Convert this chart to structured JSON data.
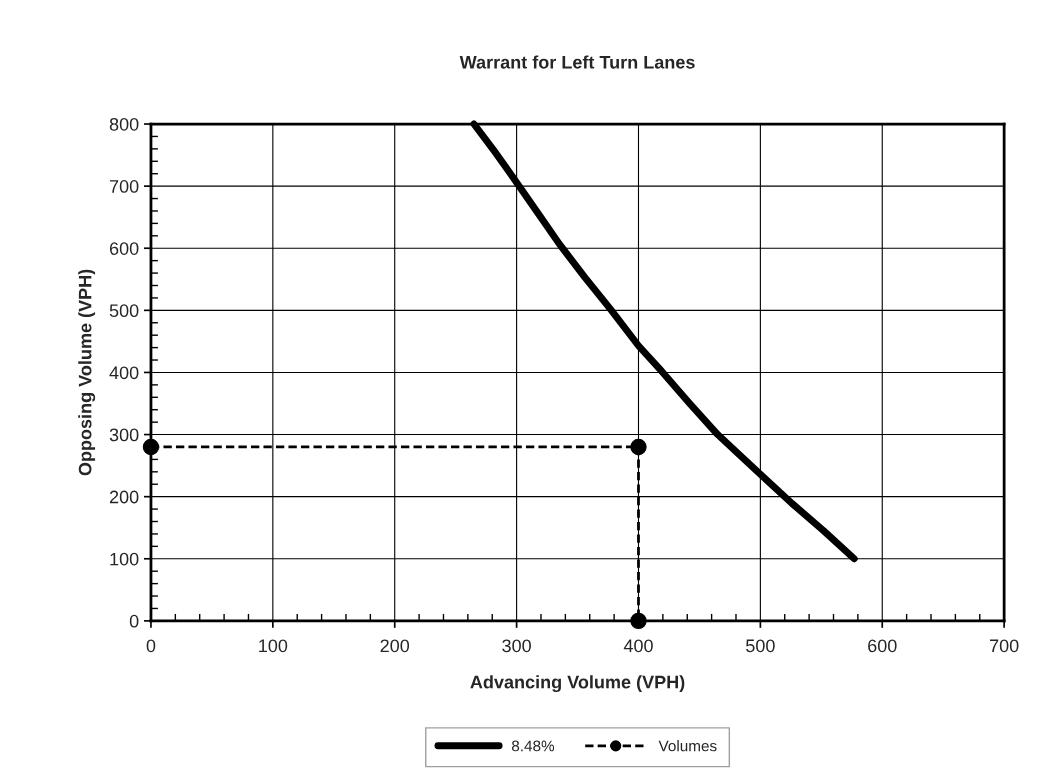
{
  "chart_data": {
    "type": "line",
    "title": "Warrant for Left Turn Lanes",
    "xlabel": "Advancing Volume (VPH)",
    "ylabel": "Opposing Volume (VPH)",
    "xlim": [
      0,
      700
    ],
    "ylim": [
      0,
      800
    ],
    "xticks": [
      0,
      100,
      200,
      300,
      400,
      500,
      600,
      700,
      {
        "value": 20,
        "label": null
      },
      {
        "value": 40,
        "label": null
      },
      {
        "value": 60,
        "label": null
      },
      {
        "value": 80,
        "label": null
      },
      {
        "value": 120,
        "label": null
      },
      {
        "value": 140,
        "label": null
      },
      {
        "value": 160,
        "label": null
      },
      {
        "value": 180,
        "label": null
      },
      {
        "value": 220,
        "label": null
      },
      {
        "value": 240,
        "label": null
      },
      {
        "value": 260,
        "label": null
      },
      {
        "value": 280,
        "label": null
      },
      {
        "value": 320,
        "label": null
      },
      {
        "value": 340,
        "label": null
      },
      {
        "value": 360,
        "label": null
      },
      {
        "value": 380,
        "label": null
      },
      {
        "value": 420,
        "label": null
      },
      {
        "value": 440,
        "label": null
      },
      {
        "value": 460,
        "label": null
      },
      {
        "value": 480,
        "label": null
      },
      {
        "value": 520,
        "label": null
      },
      {
        "value": 540,
        "label": null
      },
      {
        "value": 560,
        "label": null
      },
      {
        "value": 580,
        "label": null
      },
      {
        "value": 620,
        "label": null
      },
      {
        "value": 640,
        "label": null
      },
      {
        "value": 660,
        "label": null
      },
      {
        "value": 680,
        "label": null
      }
    ],
    "yticks": [
      0,
      100,
      200,
      300,
      400,
      500,
      600,
      700,
      800,
      {
        "value": 20,
        "label": null
      },
      {
        "value": 40,
        "label": null
      },
      {
        "value": 60,
        "label": null
      },
      {
        "value": 80,
        "label": null
      },
      {
        "value": 120,
        "label": null
      },
      {
        "value": 140,
        "label": null
      },
      {
        "value": 160,
        "label": null
      },
      {
        "value": 180,
        "label": null
      },
      {
        "value": 220,
        "label": null
      },
      {
        "value": 240,
        "label": null
      },
      {
        "value": 260,
        "label": null
      },
      {
        "value": 280,
        "label": null
      },
      {
        "value": 320,
        "label": null
      },
      {
        "value": 340,
        "label": null
      },
      {
        "value": 360,
        "label": null
      },
      {
        "value": 380,
        "label": null
      },
      {
        "value": 420,
        "label": null
      },
      {
        "value": 440,
        "label": null
      },
      {
        "value": 460,
        "label": null
      },
      {
        "value": 480,
        "label": null
      },
      {
        "value": 520,
        "label": null
      },
      {
        "value": 540,
        "label": null
      },
      {
        "value": 560,
        "label": null
      },
      {
        "value": 580,
        "label": null
      },
      {
        "value": 620,
        "label": null
      },
      {
        "value": 640,
        "label": null
      },
      {
        "value": 660,
        "label": null
      },
      {
        "value": 680,
        "label": null
      },
      {
        "value": 720,
        "label": null
      },
      {
        "value": 740,
        "label": null
      },
      {
        "value": 760,
        "label": null
      },
      {
        "value": 780,
        "label": null
      }
    ],
    "grid": true,
    "legend": "bottom",
    "series": [
      {
        "name": "8.48%",
        "color": "#000000",
        "marker": "none",
        "line_style": "solid",
        "x": [
          265,
          283,
          300,
          318,
          335,
          356,
          377,
          400,
          419,
          442,
          465,
          483,
          500,
          526,
          552,
          577
        ],
        "values": [
          800,
          753,
          706,
          655,
          607,
          553,
          502,
          443,
          402,
          350,
          300,
          267,
          236,
          189,
          145,
          100
        ]
      },
      {
        "name": "Volumes",
        "color": "#000000",
        "marker": "circle",
        "line_style": "dashed",
        "x": [
          0,
          400,
          400
        ],
        "values": [
          280,
          280,
          0
        ]
      }
    ]
  }
}
